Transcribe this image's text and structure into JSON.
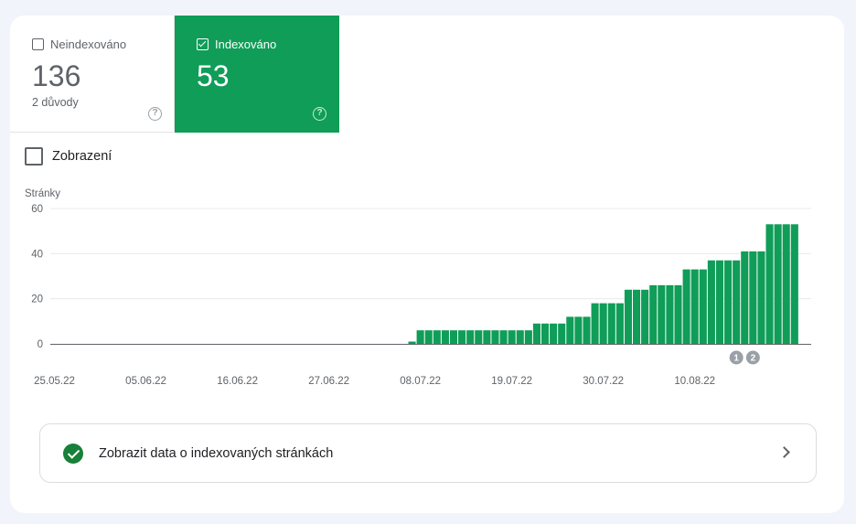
{
  "tiles": {
    "not_indexed": {
      "label": "Neindexováno",
      "count": "136",
      "sub": "2 důvody",
      "checked": false
    },
    "indexed": {
      "label": "Indexováno",
      "count": "53",
      "checked": true
    }
  },
  "views_toggle": {
    "label": "Zobrazení"
  },
  "link_card": {
    "label": "Zobrazit data o indexovaných stránkách"
  },
  "colors": {
    "accent": "#0f9d58",
    "bar": "#0f9d58",
    "check": "#188038"
  },
  "chart_data": {
    "type": "bar",
    "ylabel": "Stránky",
    "ylim": [
      0,
      60
    ],
    "yticks": [
      0,
      20,
      40,
      60
    ],
    "grid": true,
    "date_range": [
      "25.05.22",
      "19.08.22"
    ],
    "xtick_labels": [
      "25.05.22",
      "05.06.22",
      "16.06.22",
      "27.06.22",
      "08.07.22",
      "19.07.22",
      "30.07.22",
      "10.08.22"
    ],
    "series": [
      {
        "values": [
          0,
          0,
          0,
          0,
          0,
          0,
          0,
          0,
          0,
          0,
          0,
          0,
          0,
          0,
          0,
          0,
          0,
          0,
          0,
          0,
          0,
          0,
          0,
          0,
          0,
          0,
          0,
          0,
          0,
          0,
          0,
          0,
          0,
          0,
          0,
          0,
          0,
          0,
          0,
          0,
          0,
          0,
          0,
          1,
          6,
          6,
          6,
          6,
          6,
          6,
          6,
          6,
          6,
          6,
          6,
          6,
          6,
          6,
          9,
          9,
          9,
          9,
          12,
          12,
          12,
          18,
          18,
          18,
          18,
          24,
          24,
          24,
          26,
          26,
          26,
          26,
          33,
          33,
          33,
          37,
          37,
          37,
          37,
          41,
          41,
          41,
          53,
          53,
          53,
          53
        ]
      }
    ],
    "annotations": [
      {
        "label": "1",
        "date": "15.08.22"
      },
      {
        "label": "2",
        "date": "17.08.22"
      }
    ]
  }
}
